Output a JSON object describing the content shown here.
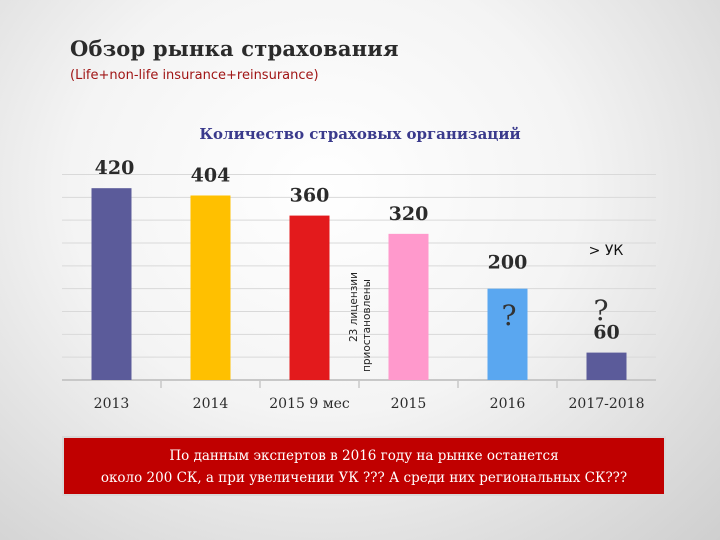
{
  "slide": {
    "title": "Обзор рынка страхования",
    "subtitle": "(Life+non-life insurance+reinsurance)"
  },
  "chart_data": {
    "type": "bar",
    "title": "Количество страховых организаций",
    "categories": [
      "2013",
      "2014",
      "2015 9 мес",
      "2015",
      "2016",
      "2017-2018"
    ],
    "values": [
      420,
      404,
      360,
      320,
      200,
      60
    ],
    "data_labels": [
      "420",
      "404",
      "360",
      "320",
      "200",
      "60"
    ],
    "colors": [
      "#5b5b9a",
      "#ffc000",
      "#e31a1c",
      "#ff99cc",
      "#5aa7f0",
      "#5b5b9a"
    ],
    "ylim": [
      0,
      480
    ],
    "xlabel": "",
    "ylabel": "",
    "grid": true,
    "annotations": {
      "rotated_note": [
        "23 лицензии",
        "приостановлены"
      ],
      "q_2016": "?",
      "q_2017": "?",
      "uk_label": "> УК"
    }
  },
  "footer": {
    "line1": "По данным экспертов в 2016 году на рынке останется",
    "line2": "около 200 СК, а при увеличении УК ??? А среди них региональных СК???"
  }
}
